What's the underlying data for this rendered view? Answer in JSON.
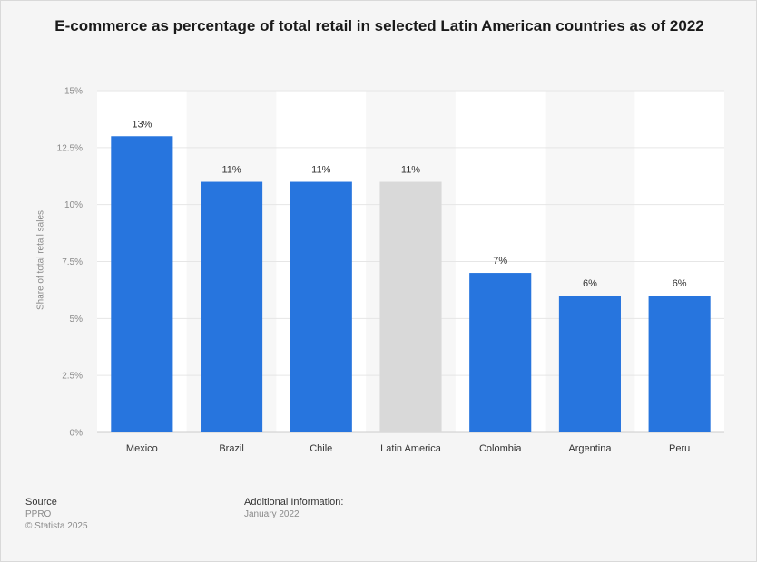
{
  "chart_data": {
    "type": "bar",
    "title": "E-commerce as percentage of total retail in selected Latin American countries as of 2022",
    "xlabel": "",
    "ylabel": "Share of total retail sales",
    "categories": [
      "Mexico",
      "Brazil",
      "Chile",
      "Latin America",
      "Colombia",
      "Argentina",
      "Peru"
    ],
    "values": [
      13,
      11,
      11,
      11,
      7,
      6,
      6
    ],
    "value_labels": [
      "13%",
      "11%",
      "11%",
      "11%",
      "7%",
      "6%",
      "6%"
    ],
    "highlighted_category": "Latin America",
    "ylim": [
      0,
      15
    ],
    "yticks": [
      0,
      2.5,
      5,
      7.5,
      10,
      12.5,
      15
    ],
    "ytick_labels": [
      "0%",
      "2.5%",
      "5%",
      "7.5%",
      "10%",
      "12.5%",
      "15%"
    ],
    "grid": true,
    "colors": {
      "bar": "#2775de",
      "highlight": "#d9d9d9",
      "grid": "#e6e6e6",
      "band": "#f7f7f7"
    }
  },
  "footer": {
    "source_heading": "Source",
    "source_name": "PPRO",
    "copyright": "© Statista 2025",
    "info_heading": "Additional Information:",
    "info_text": "January 2022"
  }
}
